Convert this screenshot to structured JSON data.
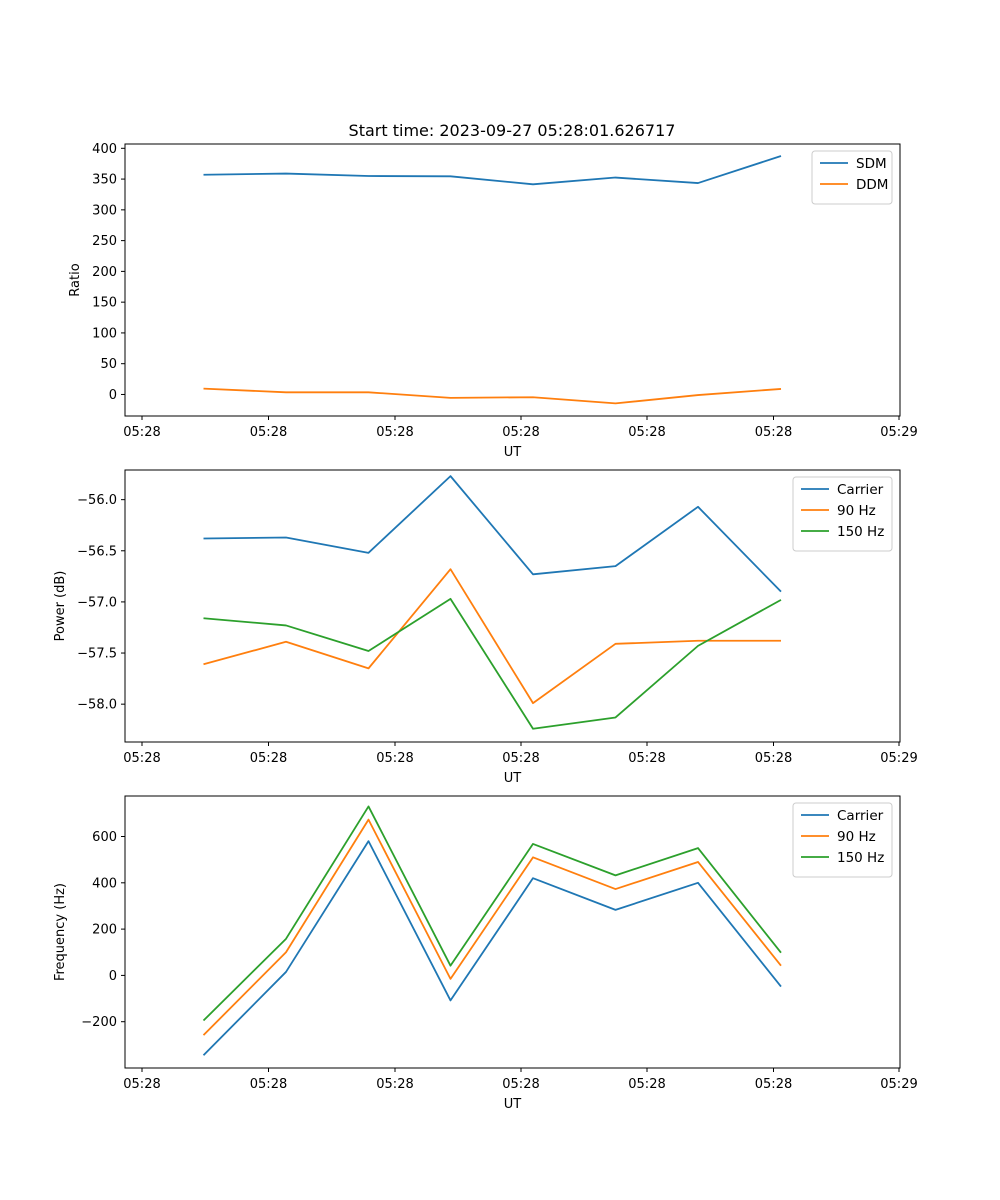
{
  "figure": {
    "title": "Start time: 2023-09-27 05:28:01.626717"
  },
  "chart_data": [
    {
      "type": "line",
      "title": "Start time: 2023-09-27 05:28:01.626717",
      "xlabel": "UT",
      "ylabel": "Ratio",
      "x_tick_labels": [
        "05:28",
        "05:28",
        "05:28",
        "05:28",
        "05:28",
        "05:28",
        "05:29"
      ],
      "y_ticks": [
        0,
        50,
        100,
        150,
        200,
        250,
        300,
        350,
        400
      ],
      "ylim": [
        -35,
        407
      ],
      "legend_position": "upper-right",
      "grid": false,
      "series": [
        {
          "name": "SDM",
          "color": "#1f77b4",
          "values": [
            357,
            359,
            355,
            354.5,
            341.5,
            352.5,
            343.5,
            387.5
          ]
        },
        {
          "name": "DDM",
          "color": "#ff7f0e",
          "values": [
            9.5,
            3.5,
            3.5,
            -5.5,
            -4.5,
            -14.5,
            -1,
            9
          ]
        }
      ]
    },
    {
      "type": "line",
      "title": "",
      "xlabel": "UT",
      "ylabel": "Power (dB)",
      "x_tick_labels": [
        "05:28",
        "05:28",
        "05:28",
        "05:28",
        "05:28",
        "05:28",
        "05:29"
      ],
      "y_ticks": [
        -58.0,
        -57.5,
        -57.0,
        -56.5,
        -56.0
      ],
      "y_tick_labels": [
        "−58.0",
        "−57.5",
        "−57.0",
        "−56.5",
        "−56.0"
      ],
      "ylim": [
        -58.37,
        -55.71
      ],
      "legend_position": "upper-right",
      "grid": false,
      "series": [
        {
          "name": "Carrier",
          "color": "#1f77b4",
          "values": [
            -56.38,
            -56.37,
            -56.52,
            -55.77,
            -56.73,
            -56.65,
            -56.07,
            -56.9
          ]
        },
        {
          "name": "90 Hz",
          "color": "#ff7f0e",
          "values": [
            -57.61,
            -57.39,
            -57.65,
            -56.68,
            -57.99,
            -57.41,
            -57.38,
            -57.38
          ]
        },
        {
          "name": "150 Hz",
          "color": "#2ca02c",
          "values": [
            -57.16,
            -57.23,
            -57.48,
            -56.97,
            -58.24,
            -58.13,
            -57.43,
            -56.98
          ]
        }
      ]
    },
    {
      "type": "line",
      "title": "",
      "xlabel": "UT",
      "ylabel": "Frequency (Hz)",
      "x_tick_labels": [
        "05:28",
        "05:28",
        "05:28",
        "05:28",
        "05:28",
        "05:28",
        "05:29"
      ],
      "y_ticks": [
        -200,
        0,
        200,
        400,
        600
      ],
      "y_tick_labels": [
        "−200",
        "0",
        "200",
        "400",
        "600"
      ],
      "ylim": [
        -400,
        775
      ],
      "legend_position": "upper-right",
      "grid": false,
      "series": [
        {
          "name": "Carrier",
          "color": "#1f77b4",
          "values": [
            -345,
            15,
            580,
            -108,
            420,
            283,
            400,
            -48
          ]
        },
        {
          "name": "90 Hz",
          "color": "#ff7f0e",
          "values": [
            -258,
            100,
            673,
            -15,
            510,
            373,
            490,
            42
          ]
        },
        {
          "name": "150 Hz",
          "color": "#2ca02c",
          "values": [
            -195,
            158,
            730,
            42,
            568,
            432,
            550,
            98
          ]
        }
      ]
    }
  ]
}
